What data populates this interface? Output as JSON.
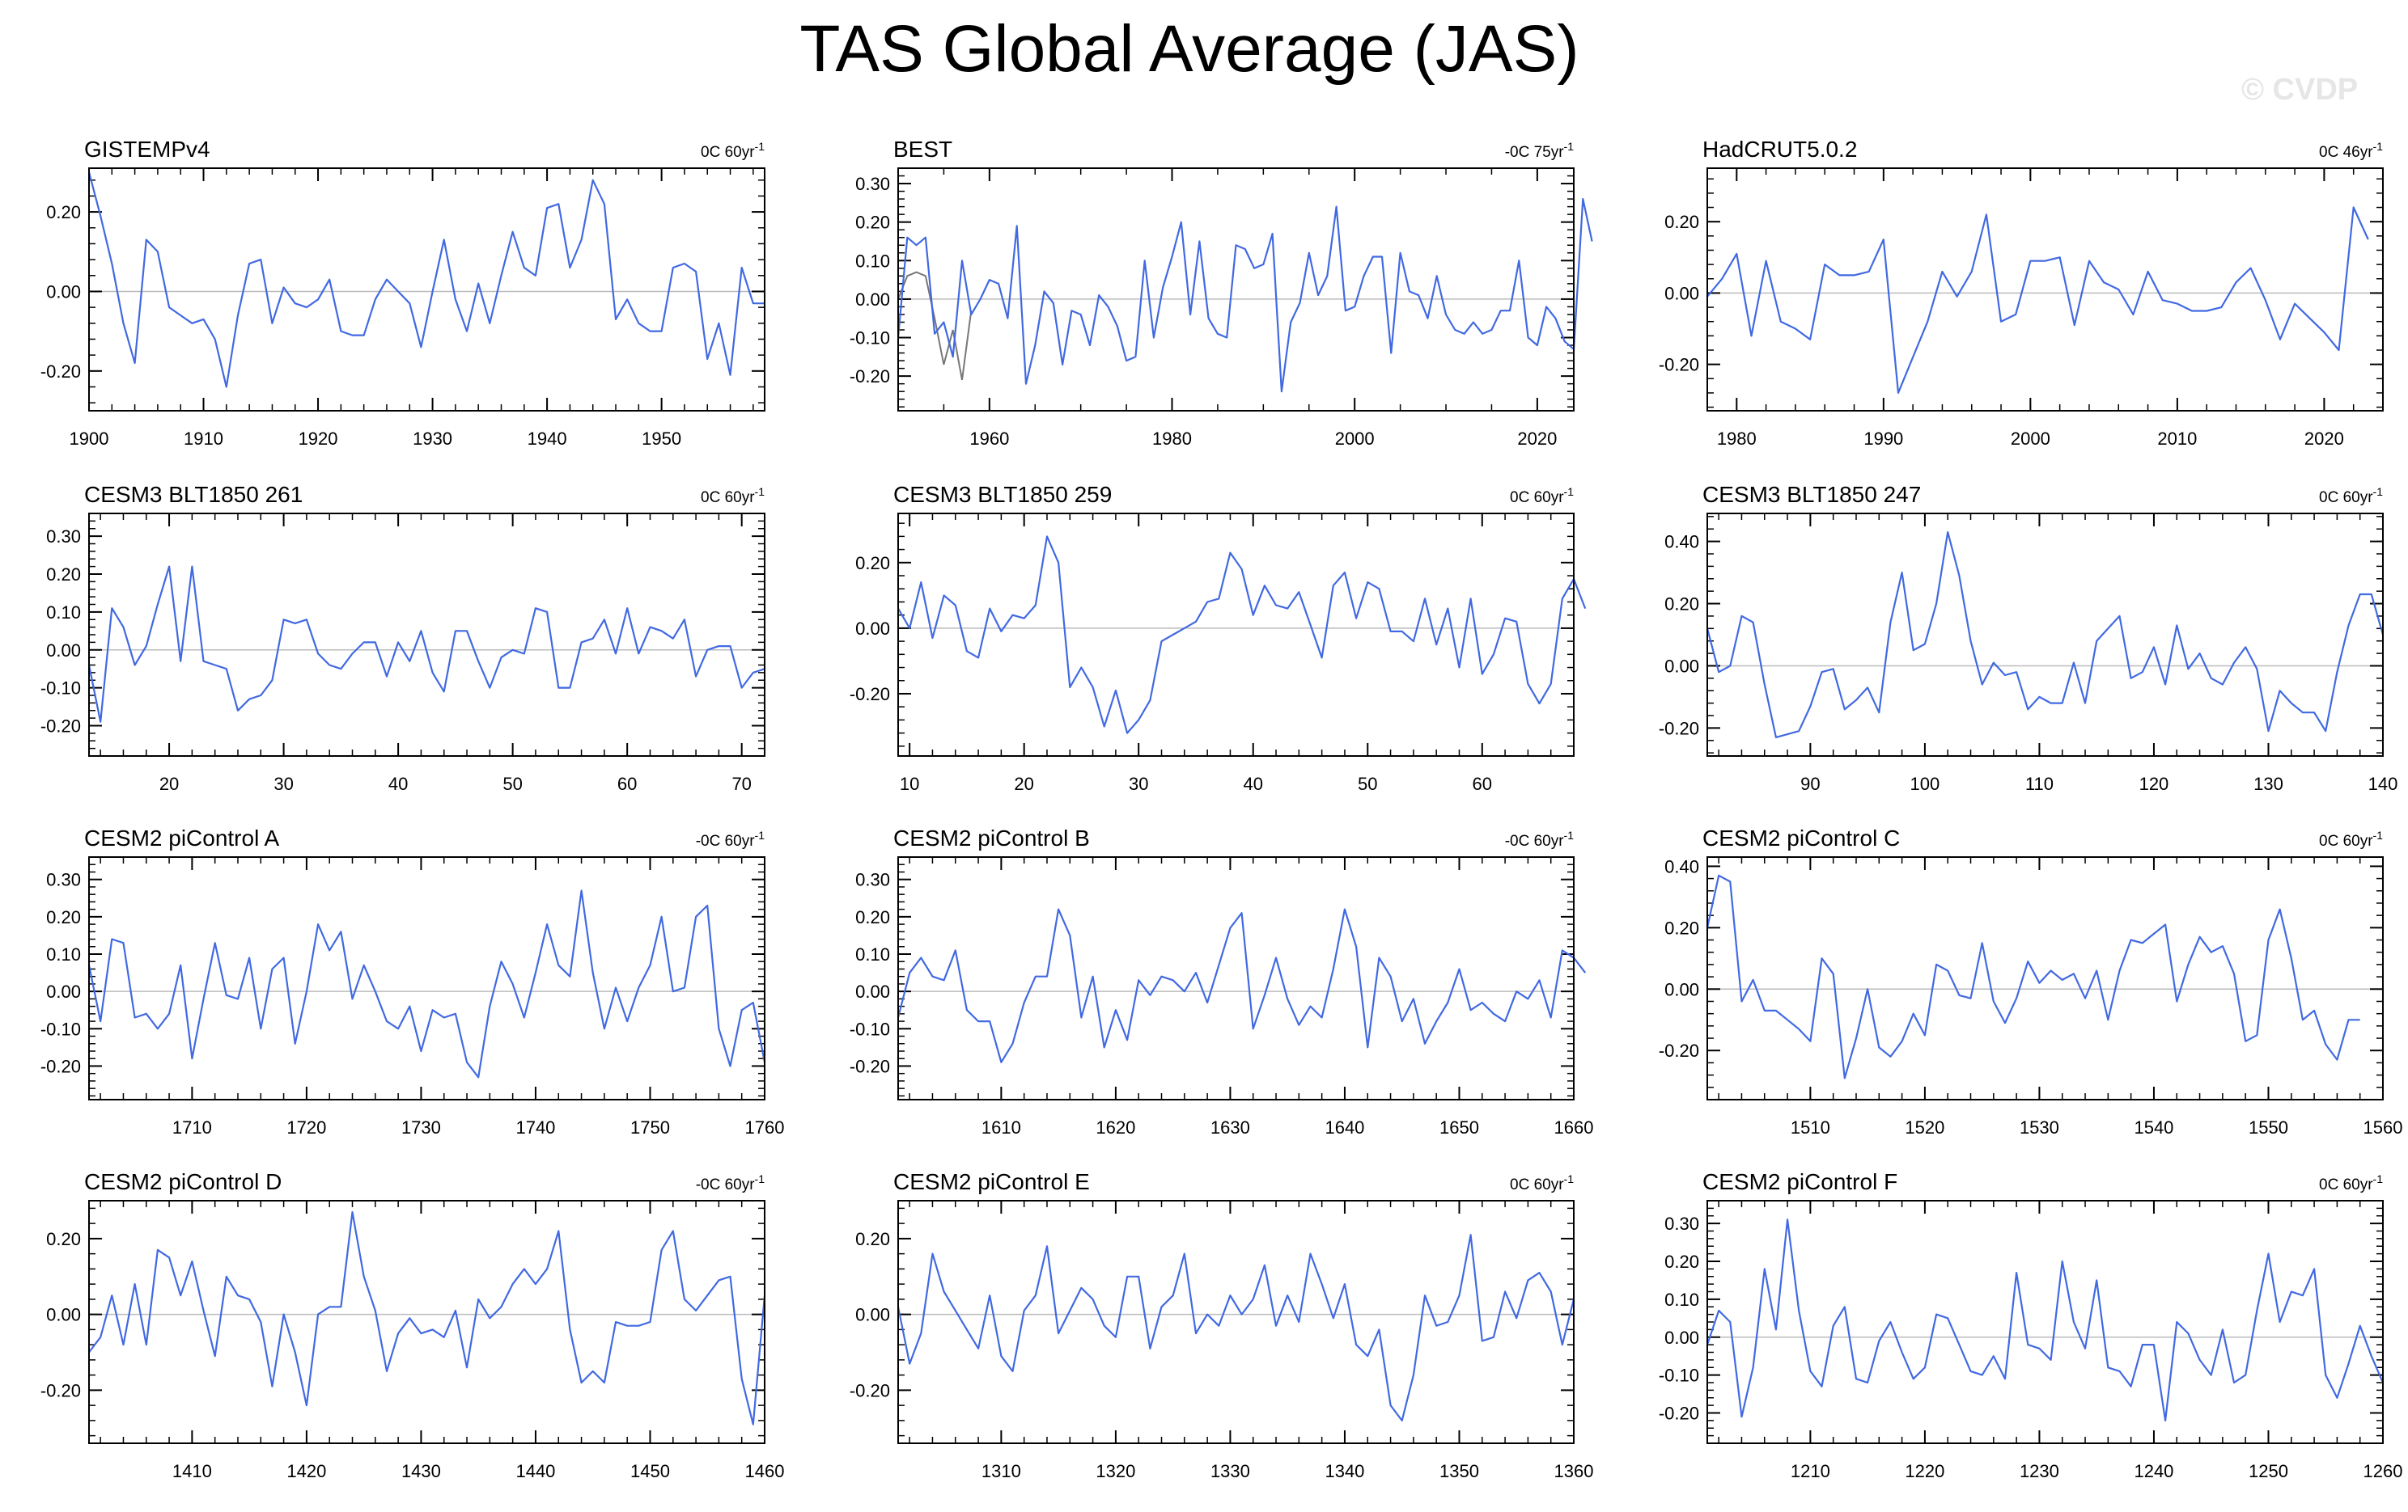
{
  "title": "TAS Global Average (JAS)",
  "watermark": "© CVDP",
  "colors": {
    "series": "#4169e1",
    "secondary": "#777777",
    "zero_line": "#bbbbbb",
    "axis": "#000000"
  },
  "chart_data": [
    {
      "type": "line",
      "title": "GISTEMPv4",
      "trend": "0C 60yr",
      "trend_sup": "-1",
      "xlim": [
        1900,
        1959
      ],
      "ylim": [
        -0.3,
        0.31
      ],
      "xticks": [
        1900,
        1910,
        1920,
        1930,
        1940,
        1950
      ],
      "yticks": [
        -0.2,
        0,
        0.2
      ],
      "ytick_labels": [
        "-0.20",
        "0.00",
        "0.20"
      ],
      "x_start": 1900,
      "values": [
        0.3,
        0.19,
        0.07,
        -0.08,
        -0.18,
        0.13,
        0.1,
        -0.04,
        -0.06,
        -0.08,
        -0.07,
        -0.12,
        -0.24,
        -0.06,
        0.07,
        0.08,
        -0.08,
        0.01,
        -0.03,
        -0.04,
        -0.02,
        0.03,
        -0.1,
        -0.11,
        -0.11,
        -0.02,
        0.03,
        0.0,
        -0.03,
        -0.14,
        0.0,
        0.13,
        -0.02,
        -0.1,
        0.02,
        -0.08,
        0.04,
        0.15,
        0.06,
        0.04,
        0.21,
        0.22,
        0.06,
        0.13,
        0.28,
        0.22,
        -0.07,
        -0.02,
        -0.08,
        -0.1,
        -0.1,
        0.06,
        0.07,
        0.05,
        -0.17,
        -0.08,
        -0.21,
        0.06,
        -0.03,
        -0.03
      ]
    },
    {
      "type": "line",
      "title": "BEST",
      "trend": "-0C 75yr",
      "trend_sup": "-1",
      "xlim": [
        1950,
        2024
      ],
      "ylim": [
        -0.29,
        0.34
      ],
      "xticks": [
        1960,
        1980,
        2000,
        2020
      ],
      "yticks": [
        -0.2,
        -0.1,
        0,
        0.1,
        0.2,
        0.3
      ],
      "ytick_labels": [
        "-0.20",
        "-0.10",
        "0.00",
        "0.10",
        "0.20",
        "0.30"
      ],
      "x_start": 1950,
      "values": [
        -0.1,
        0.16,
        0.14,
        0.16,
        -0.09,
        -0.06,
        -0.15,
        0.1,
        -0.04,
        0.0,
        0.05,
        0.04,
        -0.05,
        0.19,
        -0.22,
        -0.12,
        0.02,
        -0.01,
        -0.17,
        -0.03,
        -0.04,
        -0.12,
        0.01,
        -0.02,
        -0.07,
        -0.16,
        -0.15,
        0.1,
        -0.1,
        0.03,
        0.11,
        0.2,
        -0.04,
        0.15,
        -0.05,
        -0.09,
        -0.1,
        0.14,
        0.13,
        0.08,
        0.09,
        0.17,
        -0.24,
        -0.06,
        -0.01,
        0.12,
        0.01,
        0.06,
        0.24,
        -0.03,
        -0.02,
        0.06,
        0.11,
        0.11,
        -0.14,
        0.12,
        0.02,
        0.01,
        -0.05,
        0.06,
        -0.04,
        -0.08,
        -0.09,
        -0.06,
        -0.09,
        -0.08,
        -0.03,
        -0.03,
        0.1,
        -0.1,
        -0.12,
        -0.02,
        -0.05,
        -0.11,
        -0.13,
        0.26,
        0.15
      ],
      "secondary_values": [
        0.0,
        0.06,
        0.07,
        0.06,
        -0.05,
        -0.17,
        -0.08,
        -0.21,
        -0.03
      ]
    },
    {
      "type": "line",
      "title": "HadCRUT5.0.2",
      "trend": "0C 46yr",
      "trend_sup": "-1",
      "xlim": [
        1978,
        2024
      ],
      "ylim": [
        -0.33,
        0.35
      ],
      "xticks": [
        1980,
        1990,
        2000,
        2010,
        2020
      ],
      "yticks": [
        -0.2,
        0,
        0.2
      ],
      "ytick_labels": [
        "-0.20",
        "0.00",
        "0.20"
      ],
      "x_start": 1978,
      "values": [
        -0.01,
        0.04,
        0.11,
        -0.12,
        0.09,
        -0.08,
        -0.1,
        -0.13,
        0.08,
        0.05,
        0.05,
        0.06,
        0.15,
        -0.28,
        -0.18,
        -0.08,
        0.06,
        -0.01,
        0.06,
        0.22,
        -0.08,
        -0.06,
        0.09,
        0.09,
        0.1,
        -0.09,
        0.09,
        0.03,
        0.01,
        -0.06,
        0.06,
        -0.02,
        -0.03,
        -0.05,
        -0.05,
        -0.04,
        0.03,
        0.07,
        -0.02,
        -0.13,
        -0.03,
        -0.07,
        -0.11,
        -0.16,
        0.24,
        0.15
      ]
    },
    {
      "type": "line",
      "title": "CESM3 BLT1850 261",
      "trend": "0C 60yr",
      "trend_sup": "-1",
      "xlim": [
        13,
        72
      ],
      "ylim": [
        -0.28,
        0.36
      ],
      "xticks": [
        20,
        30,
        40,
        50,
        60,
        70
      ],
      "yticks": [
        -0.2,
        -0.1,
        0,
        0.1,
        0.2,
        0.3
      ],
      "ytick_labels": [
        "-0.20",
        "-0.10",
        "0.00",
        "0.10",
        "0.20",
        "0.30"
      ],
      "x_start": 13,
      "values": [
        -0.04,
        -0.19,
        0.11,
        0.06,
        -0.04,
        0.01,
        0.12,
        0.22,
        -0.03,
        0.22,
        -0.03,
        -0.04,
        -0.05,
        -0.16,
        -0.13,
        -0.12,
        -0.08,
        0.08,
        0.07,
        0.08,
        -0.01,
        -0.04,
        -0.05,
        -0.01,
        0.02,
        0.02,
        -0.07,
        0.02,
        -0.03,
        0.05,
        -0.06,
        -0.11,
        0.05,
        0.05,
        -0.03,
        -0.1,
        -0.02,
        0.0,
        -0.01,
        0.11,
        0.1,
        -0.1,
        -0.1,
        0.02,
        0.03,
        0.08,
        -0.01,
        0.11,
        -0.01,
        0.06,
        0.05,
        0.03,
        0.08,
        -0.07,
        0.0,
        0.01,
        0.01,
        -0.1,
        -0.06,
        -0.05
      ]
    },
    {
      "type": "line",
      "title": "CESM3 BLT1850 259",
      "trend": "0C 60yr",
      "trend_sup": "-1",
      "xlim": [
        9,
        68
      ],
      "ylim": [
        -0.39,
        0.35
      ],
      "xticks": [
        10,
        20,
        30,
        40,
        50,
        60
      ],
      "yticks": [
        -0.2,
        0,
        0.2
      ],
      "ytick_labels": [
        "-0.20",
        "0.00",
        "0.20"
      ],
      "x_start": 9,
      "values": [
        0.06,
        0.0,
        0.14,
        -0.03,
        0.1,
        0.07,
        -0.07,
        -0.09,
        0.06,
        -0.01,
        0.04,
        0.03,
        0.07,
        0.28,
        0.2,
        -0.18,
        -0.12,
        -0.18,
        -0.3,
        -0.19,
        -0.32,
        -0.28,
        -0.22,
        -0.04,
        -0.02,
        0.0,
        0.02,
        0.08,
        0.09,
        0.23,
        0.18,
        0.04,
        0.13,
        0.07,
        0.06,
        0.11,
        0.01,
        -0.09,
        0.13,
        0.17,
        0.03,
        0.14,
        0.12,
        -0.01,
        -0.01,
        -0.04,
        0.09,
        -0.05,
        0.06,
        -0.12,
        0.09,
        -0.14,
        -0.08,
        0.03,
        0.02,
        -0.17,
        -0.23,
        -0.17,
        0.09,
        0.15,
        0.06
      ]
    },
    {
      "type": "line",
      "title": "CESM3 BLT1850 247",
      "trend": "0C 60yr",
      "trend_sup": "-1",
      "xlim": [
        81,
        140
      ],
      "ylim": [
        -0.29,
        0.49
      ],
      "xticks": [
        90,
        100,
        110,
        120,
        130,
        140
      ],
      "yticks": [
        -0.2,
        0,
        0.2,
        0.4
      ],
      "ytick_labels": [
        "-0.20",
        "0.00",
        "0.20",
        "0.40"
      ],
      "x_start": 81,
      "values": [
        0.12,
        -0.02,
        0.0,
        0.16,
        0.14,
        -0.06,
        -0.23,
        -0.22,
        -0.21,
        -0.13,
        -0.02,
        -0.01,
        -0.14,
        -0.11,
        -0.07,
        -0.15,
        0.14,
        0.3,
        0.05,
        0.07,
        0.2,
        0.43,
        0.29,
        0.08,
        -0.06,
        0.01,
        -0.03,
        -0.02,
        -0.14,
        -0.1,
        -0.12,
        -0.12,
        0.01,
        -0.12,
        0.08,
        0.12,
        0.16,
        -0.04,
        -0.02,
        0.06,
        -0.06,
        0.13,
        -0.01,
        0.04,
        -0.04,
        -0.06,
        0.01,
        0.06,
        -0.01,
        -0.21,
        -0.08,
        -0.12,
        -0.15,
        -0.15,
        -0.21,
        -0.02,
        0.13,
        0.23,
        0.23,
        0.1
      ]
    },
    {
      "type": "line",
      "title": "CESM2 piControl A",
      "trend": "-0C 60yr",
      "trend_sup": "-1",
      "xlim": [
        1701,
        1760
      ],
      "ylim": [
        -0.29,
        0.36
      ],
      "xticks": [
        1710,
        1720,
        1730,
        1740,
        1750,
        1760
      ],
      "yticks": [
        -0.2,
        -0.1,
        0,
        0.1,
        0.2,
        0.3
      ],
      "ytick_labels": [
        "-0.20",
        "-0.10",
        "0.00",
        "0.10",
        "0.20",
        "0.30"
      ],
      "x_start": 1701,
      "values": [
        0.07,
        -0.08,
        0.14,
        0.13,
        -0.07,
        -0.06,
        -0.1,
        -0.06,
        0.07,
        -0.18,
        -0.02,
        0.13,
        -0.01,
        -0.02,
        0.09,
        -0.1,
        0.06,
        0.09,
        -0.14,
        0.0,
        0.18,
        0.11,
        0.16,
        -0.02,
        0.07,
        0.0,
        -0.08,
        -0.1,
        -0.04,
        -0.16,
        -0.05,
        -0.07,
        -0.06,
        -0.19,
        -0.23,
        -0.04,
        0.08,
        0.02,
        -0.07,
        0.05,
        0.18,
        0.07,
        0.04,
        0.27,
        0.05,
        -0.1,
        0.01,
        -0.08,
        0.01,
        0.07,
        0.2,
        0.0,
        0.01,
        0.2,
        0.23,
        -0.1,
        -0.2,
        -0.05,
        -0.03,
        -0.19
      ]
    },
    {
      "type": "line",
      "title": "CESM2 piControl B",
      "trend": "-0C 60yr",
      "trend_sup": "-1",
      "xlim": [
        1601,
        1660
      ],
      "ylim": [
        -0.29,
        0.36
      ],
      "xticks": [
        1610,
        1620,
        1630,
        1640,
        1650,
        1660
      ],
      "yticks": [
        -0.2,
        -0.1,
        0,
        0.1,
        0.2,
        0.3
      ],
      "ytick_labels": [
        "-0.20",
        "-0.10",
        "0.00",
        "0.10",
        "0.20",
        "0.30"
      ],
      "x_start": 1601,
      "values": [
        -0.07,
        0.05,
        0.09,
        0.04,
        0.03,
        0.11,
        -0.05,
        -0.08,
        -0.08,
        -0.19,
        -0.14,
        -0.03,
        0.04,
        0.04,
        0.22,
        0.15,
        -0.07,
        0.04,
        -0.15,
        -0.05,
        -0.13,
        0.03,
        -0.01,
        0.04,
        0.03,
        0.0,
        0.05,
        -0.03,
        0.07,
        0.17,
        0.21,
        -0.1,
        -0.01,
        0.09,
        -0.02,
        -0.09,
        -0.04,
        -0.07,
        0.06,
        0.22,
        0.12,
        -0.15,
        0.09,
        0.04,
        -0.08,
        -0.02,
        -0.14,
        -0.08,
        -0.03,
        0.06,
        -0.05,
        -0.03,
        -0.06,
        -0.08,
        0.0,
        -0.02,
        0.03,
        -0.07,
        0.11,
        0.09,
        0.05
      ]
    },
    {
      "type": "line",
      "title": "CESM2 piControl C",
      "trend": "0C 60yr",
      "trend_sup": "-1",
      "xlim": [
        1501,
        1560
      ],
      "ylim": [
        -0.36,
        0.43
      ],
      "xticks": [
        1510,
        1520,
        1530,
        1540,
        1550,
        1560
      ],
      "yticks": [
        -0.2,
        0,
        0.2,
        0.4
      ],
      "ytick_labels": [
        "-0.20",
        "0.00",
        "0.20",
        "0.40"
      ],
      "x_start": 1501,
      "values": [
        0.2,
        0.37,
        0.35,
        -0.04,
        0.03,
        -0.07,
        -0.07,
        -0.1,
        -0.13,
        -0.17,
        0.1,
        0.05,
        -0.29,
        -0.16,
        0.0,
        -0.19,
        -0.22,
        -0.17,
        -0.08,
        -0.15,
        0.08,
        0.06,
        -0.02,
        -0.03,
        0.15,
        -0.04,
        -0.11,
        -0.03,
        0.09,
        0.02,
        0.06,
        0.03,
        0.05,
        -0.03,
        0.06,
        -0.1,
        0.06,
        0.16,
        0.15,
        0.18,
        0.21,
        -0.04,
        0.08,
        0.17,
        0.12,
        0.14,
        0.05,
        -0.17,
        -0.15,
        0.16,
        0.26,
        0.1,
        -0.1,
        -0.07,
        -0.18,
        -0.23,
        -0.1,
        -0.1
      ]
    },
    {
      "type": "line",
      "title": "CESM2 piControl D",
      "trend": "-0C 60yr",
      "trend_sup": "-1",
      "xlim": [
        1401,
        1460
      ],
      "ylim": [
        -0.34,
        0.3
      ],
      "xticks": [
        1410,
        1420,
        1430,
        1440,
        1450,
        1460
      ],
      "yticks": [
        -0.2,
        0,
        0.2
      ],
      "ytick_labels": [
        "-0.20",
        "0.00",
        "0.20"
      ],
      "x_start": 1401,
      "values": [
        -0.1,
        -0.06,
        0.05,
        -0.08,
        0.08,
        -0.08,
        0.17,
        0.15,
        0.05,
        0.14,
        0.01,
        -0.11,
        0.1,
        0.05,
        0.04,
        -0.02,
        -0.19,
        0.0,
        -0.1,
        -0.24,
        0.0,
        0.02,
        0.02,
        0.27,
        0.1,
        0.01,
        -0.15,
        -0.05,
        -0.01,
        -0.05,
        -0.04,
        -0.06,
        0.01,
        -0.14,
        0.04,
        -0.01,
        0.02,
        0.08,
        0.12,
        0.08,
        0.12,
        0.22,
        -0.04,
        -0.18,
        -0.15,
        -0.18,
        -0.02,
        -0.03,
        -0.03,
        -0.02,
        0.17,
        0.22,
        0.04,
        0.01,
        0.05,
        0.09,
        0.1,
        -0.17,
        -0.29,
        0.05
      ]
    },
    {
      "type": "line",
      "title": "CESM2 piControl E",
      "trend": "0C 60yr",
      "trend_sup": "-1",
      "xlim": [
        1301,
        1360
      ],
      "ylim": [
        -0.34,
        0.3
      ],
      "xticks": [
        1310,
        1320,
        1330,
        1340,
        1350,
        1360
      ],
      "yticks": [
        -0.2,
        0,
        0.2
      ],
      "ytick_labels": [
        "-0.20",
        "0.00",
        "0.20"
      ],
      "x_start": 1301,
      "values": [
        0.02,
        -0.13,
        -0.05,
        0.16,
        0.06,
        0.01,
        -0.04,
        -0.09,
        0.05,
        -0.11,
        -0.15,
        0.01,
        0.05,
        0.18,
        -0.05,
        0.01,
        0.07,
        0.04,
        -0.03,
        -0.06,
        0.1,
        0.1,
        -0.09,
        0.02,
        0.05,
        0.16,
        -0.05,
        0.0,
        -0.03,
        0.05,
        0.0,
        0.04,
        0.13,
        -0.03,
        0.05,
        -0.02,
        0.16,
        0.08,
        -0.01,
        0.08,
        -0.08,
        -0.11,
        -0.04,
        -0.24,
        -0.28,
        -0.16,
        0.05,
        -0.03,
        -0.02,
        0.05,
        0.21,
        -0.07,
        -0.06,
        0.06,
        -0.01,
        0.09,
        0.11,
        0.06,
        -0.08,
        0.04
      ]
    },
    {
      "type": "line",
      "title": "CESM2 piControl F",
      "trend": "0C 60yr",
      "trend_sup": "-1",
      "xlim": [
        1201,
        1260
      ],
      "ylim": [
        -0.28,
        0.36
      ],
      "xticks": [
        1210,
        1220,
        1230,
        1240,
        1250,
        1260
      ],
      "yticks": [
        -0.2,
        -0.1,
        0,
        0.1,
        0.2,
        0.3
      ],
      "ytick_labels": [
        "-0.20",
        "-0.10",
        "0.00",
        "0.10",
        "0.20",
        "0.30"
      ],
      "x_start": 1201,
      "values": [
        -0.02,
        0.07,
        0.04,
        -0.21,
        -0.08,
        0.18,
        0.02,
        0.31,
        0.07,
        -0.09,
        -0.13,
        0.03,
        0.08,
        -0.11,
        -0.12,
        -0.01,
        0.04,
        -0.04,
        -0.11,
        -0.08,
        0.06,
        0.05,
        -0.02,
        -0.09,
        -0.1,
        -0.05,
        -0.11,
        0.17,
        -0.02,
        -0.03,
        -0.06,
        0.2,
        0.04,
        -0.03,
        0.15,
        -0.08,
        -0.09,
        -0.13,
        -0.02,
        -0.02,
        -0.22,
        0.04,
        0.01,
        -0.06,
        -0.1,
        0.02,
        -0.12,
        -0.1,
        0.07,
        0.22,
        0.04,
        0.12,
        0.11,
        0.18,
        -0.1,
        -0.16,
        -0.07,
        0.03,
        -0.05,
        -0.12
      ]
    }
  ]
}
